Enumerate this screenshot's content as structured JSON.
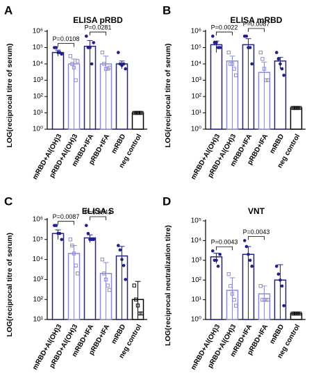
{
  "chart_data": [
    {
      "type": "bar",
      "panel": "A",
      "title": "ELISA pRBD",
      "ylabel": "LOG(reciprocal  titre of serum)",
      "log_scale": true,
      "categories": [
        "mRBD+Al(OH)3",
        "pRBD+Al(OH)3",
        "mRBD+IFA",
        "pRBD+IFA",
        "mRBD",
        "neg control"
      ],
      "values": [
        50000,
        10000,
        120000,
        10000,
        10000,
        10
      ],
      "errors": [
        20000,
        10000,
        150000,
        20000,
        5000,
        0
      ],
      "points": [
        [
          100000,
          100000,
          50000,
          50000,
          40000
        ],
        [
          30000,
          10000,
          6000,
          1000,
          15000
        ],
        [
          500000,
          100000,
          100000,
          10000,
          200000
        ],
        [
          50000,
          10000,
          5000,
          5000,
          6000
        ],
        [
          50000,
          10000,
          8000,
          10000,
          5000
        ],
        [
          10,
          10,
          10,
          10,
          10
        ]
      ],
      "colors": [
        "#1f1f8f",
        "#8a8ad6",
        "#1f1f8f",
        "#8a8ad6",
        "#1f1f8f",
        "#000000"
      ],
      "annotations": [
        "P=0.0108",
        "P=0.0281"
      ],
      "ylim": [
        1,
        1000000
      ],
      "yticks": [
        {
          "value": 1,
          "label": "10⁰"
        },
        {
          "value": 10,
          "label": "10¹"
        },
        {
          "value": 100,
          "label": "10²"
        },
        {
          "value": 1000,
          "label": "10³"
        },
        {
          "value": 10000,
          "label": "10⁴"
        },
        {
          "value": 100000,
          "label": "10⁵"
        },
        {
          "value": 1000000,
          "label": "10⁶"
        }
      ]
    },
    {
      "type": "bar",
      "panel": "B",
      "title": "ELISA mRBD",
      "ylabel": "LOG(reciprocal  titre of serum)",
      "log_scale": true,
      "categories": [
        "mRBD+Al(OH)3",
        "pRBD+Al(OH)3",
        "mRBD+IFA",
        "pRBD+IFA",
        "mRBD",
        "neg control"
      ],
      "values": [
        150000,
        15000,
        150000,
        3000,
        15000,
        20
      ],
      "errors": [
        100000,
        15000,
        200000,
        10000,
        10000,
        0
      ],
      "points": [
        [
          500000,
          200000,
          200000,
          100000,
          100000
        ],
        [
          50000,
          10000,
          10000,
          5000,
          2000
        ],
        [
          500000,
          500000,
          100000,
          100000,
          10000
        ],
        [
          50000,
          20000,
          5000,
          1000,
          1000
        ],
        [
          50000,
          20000,
          10000,
          5000,
          2000
        ],
        [
          20,
          20,
          20,
          20,
          20
        ]
      ],
      "colors": [
        "#1f1f8f",
        "#8a8ad6",
        "#1f1f8f",
        "#8a8ad6",
        "#1f1f8f",
        "#000000"
      ],
      "annotations": [
        "P=0.0022",
        "P=0.0087"
      ],
      "ylim": [
        1,
        1000000
      ],
      "yticks": [
        {
          "value": 1,
          "label": "10⁰"
        },
        {
          "value": 10,
          "label": "10¹"
        },
        {
          "value": 100,
          "label": "10²"
        },
        {
          "value": 1000,
          "label": "10³"
        },
        {
          "value": 10000,
          "label": "10⁴"
        },
        {
          "value": 100000,
          "label": "10⁵"
        },
        {
          "value": 1000000,
          "label": "10⁶"
        }
      ]
    },
    {
      "type": "bar",
      "panel": "C",
      "title": "ELISA S",
      "ylabel": "LOG(reciprocal  titre of serum)",
      "log_scale": true,
      "categories": [
        "mRBD+Al(OH)3",
        "pRBD+Al(OH)3",
        "mRBD+IFA",
        "pRBD+IFA",
        "mRBD",
        "neg control"
      ],
      "values": [
        200000,
        20000,
        120000,
        2000,
        15000,
        100
      ],
      "errors": [
        100000,
        30000,
        50000,
        5000,
        30000,
        700
      ],
      "points": [
        [
          500000,
          500000,
          200000,
          200000,
          100000
        ],
        [
          100000,
          50000,
          20000,
          5000,
          2000
        ],
        [
          500000,
          200000,
          100000,
          100000,
          100000
        ],
        [
          10000,
          2000,
          1000,
          500,
          300
        ],
        [
          50000,
          30000,
          10000,
          5000,
          1000
        ],
        [
          500,
          100,
          50,
          20,
          20
        ]
      ],
      "colors": [
        "#1f1f8f",
        "#8a8ad6",
        "#1f1f8f",
        "#8a8ad6",
        "#1f1f8f",
        "#000000"
      ],
      "annotations": [
        "P=0.0087",
        "P=0.0043"
      ],
      "ylim": [
        10,
        1000000
      ],
      "yticks": [
        {
          "value": 10,
          "label": "10¹"
        },
        {
          "value": 100,
          "label": "10²"
        },
        {
          "value": 1000,
          "label": "10³"
        },
        {
          "value": 10000,
          "label": "10⁴"
        },
        {
          "value": 100000,
          "label": "10⁵"
        },
        {
          "value": 1000000,
          "label": "10⁶"
        }
      ]
    },
    {
      "type": "bar",
      "panel": "D",
      "title": "VNT",
      "ylabel": "LOG(reciprocal neutralization  titre)",
      "log_scale": true,
      "categories": [
        "mRBD+Al(OH)3",
        "pRBD+Al(OH)3",
        "mRBD+IFA",
        "pRBD+IFA",
        "mRBD",
        "neg control"
      ],
      "values": [
        1500,
        30,
        2000,
        20,
        100,
        2
      ],
      "errors": [
        800,
        100,
        3000,
        30,
        500,
        0
      ],
      "points": [
        [
          3000,
          1000,
          1000,
          500,
          2000
        ],
        [
          200,
          50,
          20,
          10,
          5
        ],
        [
          10000,
          5000,
          2000,
          1000,
          500
        ],
        [
          50,
          10,
          10,
          10,
          10
        ],
        [
          500,
          200,
          100,
          50,
          5
        ],
        [
          2,
          2,
          2,
          2,
          2
        ]
      ],
      "colors": [
        "#1f1f8f",
        "#8a8ad6",
        "#1f1f8f",
        "#8a8ad6",
        "#1f1f8f",
        "#000000"
      ],
      "annotations": [
        "P=0.0043",
        "P=0.0043"
      ],
      "ylim": [
        1,
        100000
      ],
      "yticks": [
        {
          "value": 1,
          "label": "10⁰"
        },
        {
          "value": 10,
          "label": "10¹"
        },
        {
          "value": 100,
          "label": "10²"
        },
        {
          "value": 1000,
          "label": "10³"
        },
        {
          "value": 10000,
          "label": "10⁴"
        },
        {
          "value": 100000,
          "label": "10⁵"
        }
      ]
    }
  ]
}
